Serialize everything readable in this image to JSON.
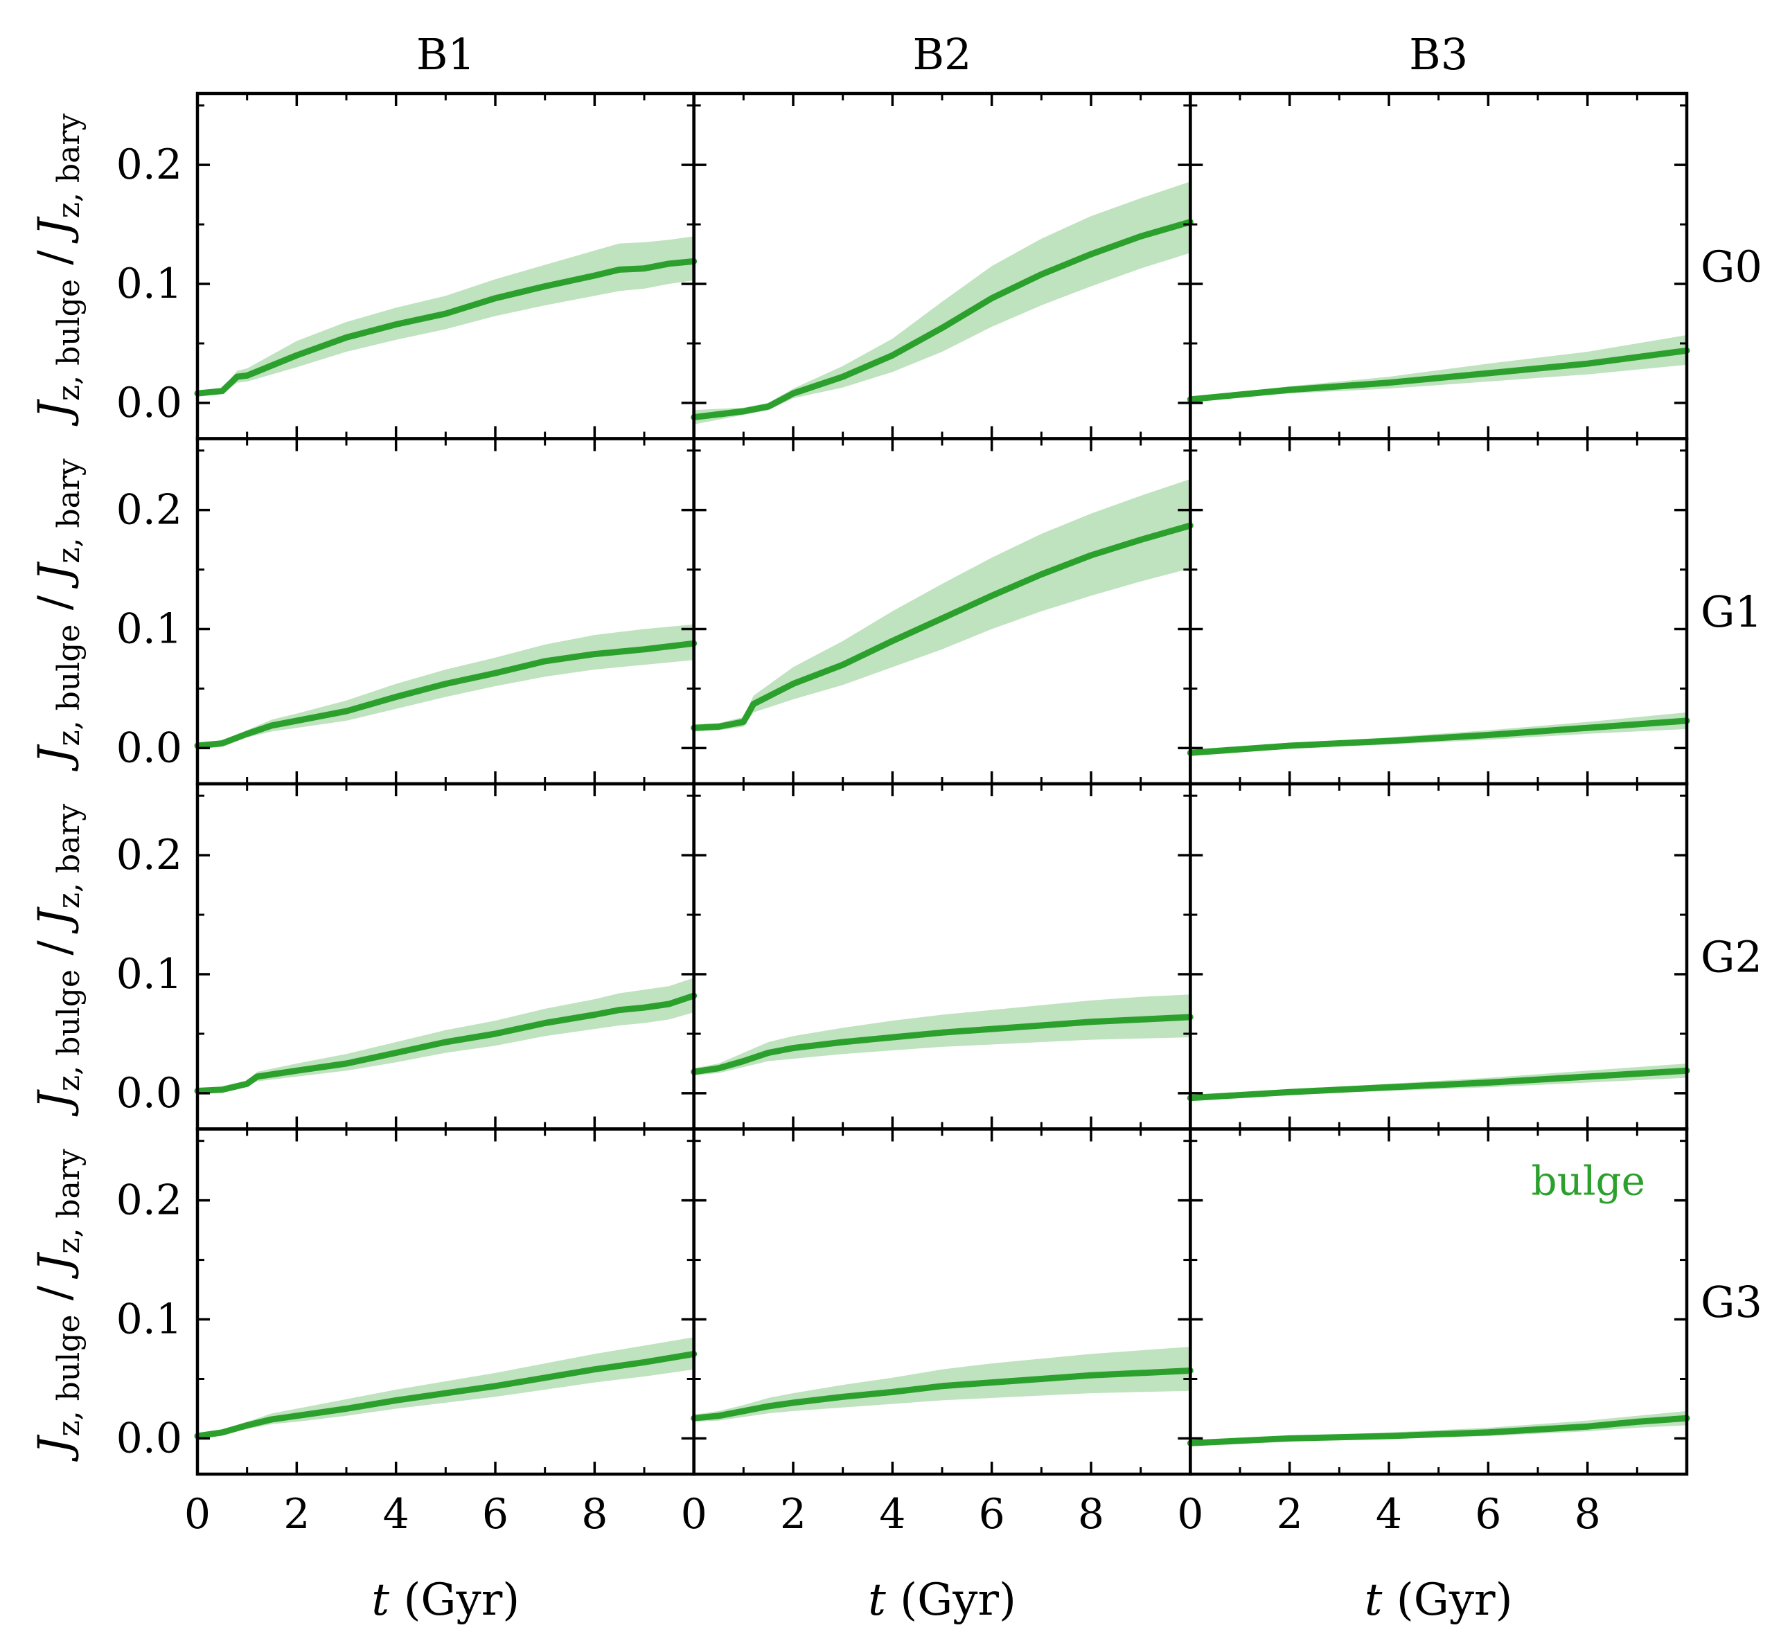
{
  "figure": {
    "colors": {
      "line": "#2ca02c",
      "band": "#2ca02c",
      "band_opacity": 0.3,
      "axis": "#000000"
    },
    "legend": {
      "label": "bulge",
      "placement": "top-right of panel G3/B3"
    }
  },
  "chart_data": {
    "type": "line",
    "layout": "4x3 grid of line panels with shaded uncertainty bands",
    "columns": [
      "B1",
      "B2",
      "B3"
    ],
    "rows": [
      "G0",
      "G1",
      "G2",
      "G3"
    ],
    "xlabel_italic": "t",
    "xlabel_rest": " (Gyr)",
    "ylabel": {
      "J1": "J",
      "sub1": "z, bulge",
      "sep": " / ",
      "J2": "J",
      "sub2": "z, bary"
    },
    "xlim": [
      0,
      10
    ],
    "ylim": [
      -0.03,
      0.26
    ],
    "xticks": [
      0,
      2,
      4,
      6,
      8
    ],
    "xtick_labels": [
      "0",
      "2",
      "4",
      "6",
      "8"
    ],
    "yticks": [
      0.0,
      0.1,
      0.2
    ],
    "ytick_labels": [
      "0.0",
      "0.1",
      "0.2"
    ],
    "series_name": "bulge",
    "panels": [
      {
        "row": "G0",
        "col": "B1",
        "x": [
          0,
          0.5,
          0.8,
          1,
          2,
          3,
          4,
          5,
          6,
          7,
          8,
          8.5,
          9,
          9.5,
          10
        ],
        "y": [
          0.008,
          0.01,
          0.022,
          0.023,
          0.04,
          0.055,
          0.066,
          0.075,
          0.088,
          0.098,
          0.107,
          0.112,
          0.113,
          0.117,
          0.119
        ],
        "lo": [
          0.007,
          0.008,
          0.017,
          0.018,
          0.03,
          0.043,
          0.053,
          0.062,
          0.073,
          0.082,
          0.09,
          0.094,
          0.096,
          0.1,
          0.103
        ],
        "hi": [
          0.009,
          0.012,
          0.027,
          0.029,
          0.052,
          0.068,
          0.08,
          0.09,
          0.104,
          0.116,
          0.128,
          0.134,
          0.135,
          0.137,
          0.14
        ]
      },
      {
        "row": "G0",
        "col": "B2",
        "x": [
          0,
          1,
          1.5,
          2,
          3,
          4,
          5,
          6,
          7,
          8,
          9,
          10
        ],
        "y": [
          -0.012,
          -0.007,
          -0.003,
          0.008,
          0.022,
          0.04,
          0.063,
          0.088,
          0.108,
          0.125,
          0.14,
          0.152
        ],
        "lo": [
          -0.018,
          -0.01,
          -0.006,
          0.004,
          0.013,
          0.026,
          0.043,
          0.064,
          0.082,
          0.098,
          0.113,
          0.126
        ],
        "hi": [
          -0.006,
          -0.004,
          0.0,
          0.012,
          0.031,
          0.054,
          0.085,
          0.115,
          0.138,
          0.157,
          0.172,
          0.186
        ]
      },
      {
        "row": "G0",
        "col": "B3",
        "x": [
          0,
          2,
          4,
          6,
          8,
          10
        ],
        "y": [
          0.003,
          0.011,
          0.017,
          0.025,
          0.033,
          0.044
        ],
        "lo": [
          0.002,
          0.008,
          0.012,
          0.018,
          0.024,
          0.032
        ],
        "hi": [
          0.004,
          0.014,
          0.022,
          0.033,
          0.043,
          0.057
        ]
      },
      {
        "row": "G1",
        "col": "B1",
        "x": [
          0,
          0.5,
          1,
          1.5,
          2,
          3,
          4,
          5,
          6,
          7,
          8,
          9,
          10
        ],
        "y": [
          0.002,
          0.004,
          0.012,
          0.019,
          0.023,
          0.031,
          0.043,
          0.054,
          0.063,
          0.073,
          0.079,
          0.083,
          0.088
        ],
        "lo": [
          0.001,
          0.003,
          0.009,
          0.014,
          0.017,
          0.023,
          0.033,
          0.043,
          0.052,
          0.06,
          0.066,
          0.07,
          0.074
        ],
        "hi": [
          0.003,
          0.005,
          0.015,
          0.024,
          0.029,
          0.04,
          0.054,
          0.066,
          0.076,
          0.087,
          0.095,
          0.1,
          0.104
        ]
      },
      {
        "row": "G1",
        "col": "B2",
        "x": [
          0,
          0.5,
          1,
          1.2,
          2,
          3,
          4,
          5,
          6,
          7,
          8,
          9,
          10
        ],
        "y": [
          0.017,
          0.018,
          0.022,
          0.037,
          0.054,
          0.07,
          0.09,
          0.109,
          0.128,
          0.146,
          0.162,
          0.175,
          0.187
        ],
        "lo": [
          0.014,
          0.015,
          0.018,
          0.03,
          0.041,
          0.053,
          0.068,
          0.083,
          0.1,
          0.115,
          0.128,
          0.14,
          0.151
        ],
        "hi": [
          0.02,
          0.021,
          0.026,
          0.044,
          0.068,
          0.09,
          0.115,
          0.138,
          0.16,
          0.18,
          0.197,
          0.212,
          0.226
        ]
      },
      {
        "row": "G1",
        "col": "B3",
        "x": [
          0,
          2,
          4,
          6,
          8,
          10
        ],
        "y": [
          -0.004,
          0.002,
          0.006,
          0.011,
          0.017,
          0.023
        ],
        "lo": [
          -0.005,
          0.0,
          0.003,
          0.007,
          0.012,
          0.016
        ],
        "hi": [
          -0.003,
          0.004,
          0.009,
          0.015,
          0.022,
          0.03
        ]
      },
      {
        "row": "G2",
        "col": "B1",
        "x": [
          0,
          0.5,
          1,
          1.2,
          2,
          3,
          4,
          5,
          6,
          7,
          8,
          8.5,
          9,
          9.5,
          10
        ],
        "y": [
          0.002,
          0.003,
          0.008,
          0.014,
          0.019,
          0.025,
          0.034,
          0.043,
          0.05,
          0.059,
          0.066,
          0.07,
          0.072,
          0.075,
          0.082
        ],
        "lo": [
          0.001,
          0.002,
          0.006,
          0.01,
          0.014,
          0.019,
          0.026,
          0.034,
          0.04,
          0.048,
          0.054,
          0.057,
          0.059,
          0.062,
          0.068
        ],
        "hi": [
          0.003,
          0.004,
          0.01,
          0.018,
          0.025,
          0.033,
          0.043,
          0.053,
          0.061,
          0.071,
          0.079,
          0.084,
          0.087,
          0.09,
          0.097
        ]
      },
      {
        "row": "G2",
        "col": "B2",
        "x": [
          0,
          0.5,
          1,
          1.5,
          2,
          3,
          4,
          5,
          6,
          7,
          8,
          9,
          10
        ],
        "y": [
          0.018,
          0.021,
          0.027,
          0.034,
          0.038,
          0.043,
          0.047,
          0.051,
          0.054,
          0.057,
          0.06,
          0.062,
          0.064
        ],
        "lo": [
          0.015,
          0.017,
          0.022,
          0.027,
          0.029,
          0.033,
          0.036,
          0.039,
          0.041,
          0.043,
          0.045,
          0.046,
          0.047
        ],
        "hi": [
          0.021,
          0.025,
          0.034,
          0.043,
          0.048,
          0.055,
          0.061,
          0.066,
          0.07,
          0.074,
          0.078,
          0.081,
          0.083
        ]
      },
      {
        "row": "G2",
        "col": "B3",
        "x": [
          0,
          2,
          4,
          6,
          8,
          10
        ],
        "y": [
          -0.004,
          0.001,
          0.005,
          0.009,
          0.014,
          0.019
        ],
        "lo": [
          -0.005,
          -0.001,
          0.002,
          0.005,
          0.009,
          0.013
        ],
        "hi": [
          -0.003,
          0.003,
          0.008,
          0.013,
          0.019,
          0.025
        ]
      },
      {
        "row": "G3",
        "col": "B1",
        "x": [
          0,
          0.5,
          1,
          1.5,
          2,
          3,
          4,
          5,
          6,
          7,
          8,
          9,
          10
        ],
        "y": [
          0.002,
          0.005,
          0.011,
          0.016,
          0.019,
          0.025,
          0.032,
          0.038,
          0.044,
          0.051,
          0.058,
          0.064,
          0.071
        ],
        "lo": [
          0.001,
          0.004,
          0.008,
          0.012,
          0.014,
          0.019,
          0.025,
          0.03,
          0.035,
          0.041,
          0.047,
          0.052,
          0.058
        ],
        "hi": [
          0.003,
          0.007,
          0.014,
          0.021,
          0.025,
          0.033,
          0.041,
          0.048,
          0.055,
          0.063,
          0.071,
          0.078,
          0.085
        ]
      },
      {
        "row": "G3",
        "col": "B2",
        "x": [
          0,
          0.5,
          1,
          1.5,
          2,
          3,
          4,
          5,
          6,
          7,
          8,
          9,
          10
        ],
        "y": [
          0.017,
          0.019,
          0.023,
          0.027,
          0.03,
          0.035,
          0.039,
          0.044,
          0.047,
          0.05,
          0.053,
          0.055,
          0.057
        ],
        "lo": [
          0.014,
          0.015,
          0.018,
          0.021,
          0.023,
          0.026,
          0.029,
          0.032,
          0.034,
          0.036,
          0.038,
          0.039,
          0.04
        ],
        "hi": [
          0.02,
          0.023,
          0.028,
          0.034,
          0.038,
          0.045,
          0.051,
          0.058,
          0.063,
          0.067,
          0.071,
          0.074,
          0.077
        ]
      },
      {
        "row": "G3",
        "col": "B3",
        "x": [
          0,
          2,
          4,
          6,
          8,
          9,
          10
        ],
        "y": [
          -0.004,
          0.0,
          0.002,
          0.005,
          0.01,
          0.014,
          0.017
        ],
        "lo": [
          -0.005,
          -0.002,
          0.0,
          0.002,
          0.006,
          0.009,
          0.011
        ],
        "hi": [
          -0.003,
          0.002,
          0.005,
          0.009,
          0.015,
          0.019,
          0.023
        ]
      }
    ]
  }
}
